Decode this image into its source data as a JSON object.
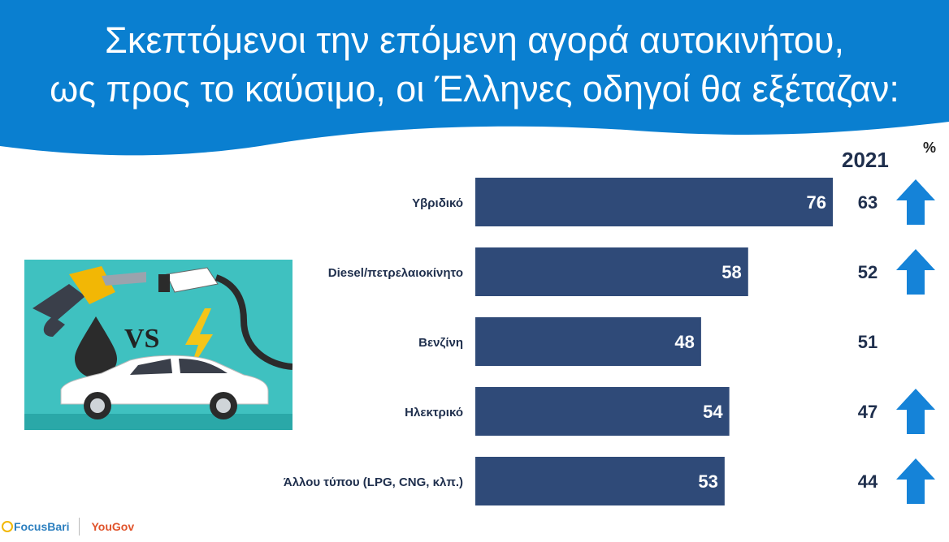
{
  "header": {
    "title_line1": "Σκεπτόμενοι την επόμενη αγορά αυτοκινήτου,",
    "title_line2": "ως προς το καύσιμο, οι Έλληνες οδηγοί θα εξέταζαν:"
  },
  "units_label": "%",
  "comparison_year": "2021",
  "illustration": {
    "vs_text": "VS"
  },
  "logos": {
    "focusbari": "FocusBari",
    "yougov": "YouGov"
  },
  "colors": {
    "header_blue": "#0a7fd0",
    "bar": "#2f4a78",
    "arrow": "#1583d8",
    "text_dark": "#1f2f4d"
  },
  "chart_data": {
    "type": "bar",
    "orientation": "horizontal",
    "categories": [
      "Υβριδικό",
      "Diesel/πετρελαιοκίνητο",
      "Βενζίνη",
      "Ηλεκτρικό",
      "Άλλου τύπου (LPG, CNG, κλπ.)"
    ],
    "series": [
      {
        "values": [
          76,
          58,
          48,
          54,
          53
        ]
      },
      {
        "name": "2021",
        "values": [
          63,
          52,
          51,
          47,
          44
        ]
      }
    ],
    "increase_arrows": [
      true,
      true,
      false,
      true,
      true
    ],
    "xlim": [
      0,
      76
    ],
    "grid": false
  }
}
